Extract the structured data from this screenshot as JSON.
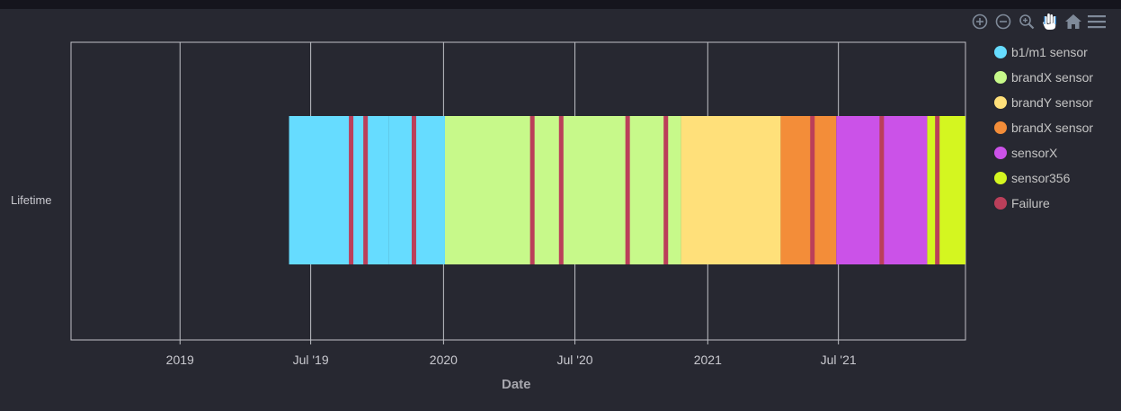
{
  "toolbar": {
    "icons": [
      "zoom-in-icon",
      "zoom-out-icon",
      "zoom-magnifier-icon",
      "pan-hand-icon",
      "home-icon",
      "menu-icon"
    ]
  },
  "chart_data": {
    "type": "timeline",
    "title": "",
    "xlabel": "Date",
    "ylabel": "",
    "categories": [
      "Lifetime"
    ],
    "xlim": [
      "2018-08-03",
      "2021-12-24"
    ],
    "x_ticks": [
      {
        "date": "2019-01-01",
        "label": "2019"
      },
      {
        "date": "2019-07-01",
        "label": "Jul '19"
      },
      {
        "date": "2020-01-01",
        "label": "2020"
      },
      {
        "date": "2020-07-01",
        "label": "Jul '20"
      },
      {
        "date": "2021-01-01",
        "label": "2021"
      },
      {
        "date": "2021-07-01",
        "label": "Jul '21"
      }
    ],
    "grid": true,
    "legend_position": "right",
    "series": [
      {
        "name": "b1/m1 sensor",
        "color": "#66dcff",
        "segments": [
          [
            "2019-06-01",
            "2019-10-17"
          ],
          [
            "2019-10-17",
            "2020-01-03"
          ]
        ]
      },
      {
        "name": "brandX sensor",
        "color": "#c7f98a",
        "segments": [
          [
            "2020-01-03",
            "2020-06-14"
          ],
          [
            "2020-06-14",
            "2020-11-25"
          ]
        ]
      },
      {
        "name": "brandY sensor",
        "color": "#ffe07a",
        "segments": [
          [
            "2020-11-25",
            "2021-04-12"
          ]
        ]
      },
      {
        "name": "brandX sensor",
        "color": "#f38d39",
        "segments": [
          [
            "2021-04-12",
            "2021-06-28"
          ]
        ]
      },
      {
        "name": "sensorX",
        "color": "#cb52e8",
        "segments": [
          [
            "2021-06-28",
            "2021-11-01"
          ]
        ]
      },
      {
        "name": "sensor356",
        "color": "#d4f620",
        "segments": [
          [
            "2021-11-01",
            "2021-12-24"
          ]
        ]
      },
      {
        "name": "Failure",
        "color": "#bb3f5a",
        "markers": [
          "2019-08-26",
          "2019-09-15",
          "2019-11-21",
          "2020-05-03",
          "2020-06-12",
          "2020-09-12",
          "2020-11-04",
          "2021-05-26",
          "2021-08-30",
          "2021-11-15"
        ]
      }
    ]
  }
}
